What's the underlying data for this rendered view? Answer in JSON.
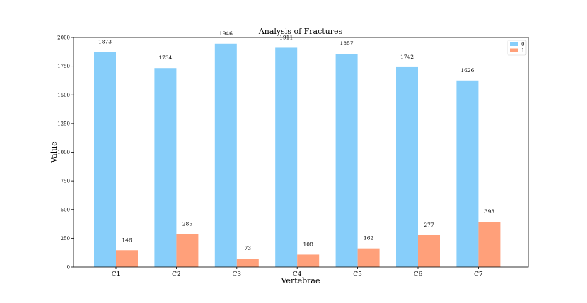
{
  "chart_data": {
    "type": "bar",
    "title": "Analysis of Fractures",
    "xlabel": "Vertebrae",
    "ylabel": "Value",
    "categories": [
      "C1",
      "C2",
      "C3",
      "C4",
      "C5",
      "C6",
      "C7"
    ],
    "series": [
      {
        "name": "0",
        "values": [
          1873,
          1734,
          1946,
          1911,
          1857,
          1742,
          1626
        ],
        "color": "#87CEFA"
      },
      {
        "name": "1",
        "values": [
          146,
          285,
          73,
          108,
          162,
          277,
          393
        ],
        "color": "#FFA07A"
      }
    ],
    "ylim": [
      0,
      2000
    ],
    "yticks": [
      0,
      250,
      500,
      750,
      1000,
      1250,
      1500,
      1750,
      2000
    ],
    "grid": false,
    "legend_position": "top-right"
  }
}
